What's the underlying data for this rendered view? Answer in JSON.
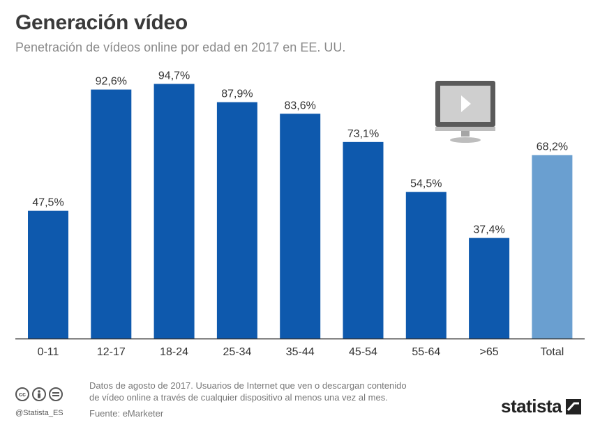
{
  "header": {
    "title": "Generación vídeo",
    "subtitle": "Penetración de vídeos online por edad en 2017 en EE. UU."
  },
  "footer": {
    "note_line1": "Datos de agosto de 2017. Usuarios de Internet que ven o descargan contenido",
    "note_line2": "de vídeo online a través de cualquier dispositivo al menos una vez al mes.",
    "source": "Fuente: eMarketer",
    "handle": "@Statista_ES",
    "brand": "statista"
  },
  "colors": {
    "bar": "#0e59ad",
    "total_bar": "#6a9fd0",
    "axis": "#333333",
    "label": "#333333"
  },
  "icons": {
    "license": [
      "cc-icon",
      "by-icon",
      "nd-icon"
    ],
    "illustration": "video-monitor-icon",
    "brand_mark": "statista-logo-icon"
  },
  "chart_data": {
    "type": "bar",
    "categories": [
      "0-11",
      "12-17",
      "18-24",
      "25-34",
      "35-44",
      "45-54",
      "55-64",
      ">65",
      "Total"
    ],
    "values": [
      47.5,
      92.6,
      94.7,
      87.9,
      83.6,
      73.1,
      54.5,
      37.4,
      68.2
    ],
    "value_labels": [
      "47,5%",
      "92,6%",
      "94,7%",
      "87,9%",
      "83,6%",
      "73,1%",
      "54,5%",
      "37,4%",
      "68,2%"
    ],
    "highlight_category": "Total",
    "title": "Generación vídeo",
    "subtitle": "Penetración de vídeos online por edad en 2017 en EE. UU.",
    "xlabel": "",
    "ylabel": "",
    "ylim": [
      0,
      100
    ],
    "grid": false,
    "legend": "none"
  }
}
